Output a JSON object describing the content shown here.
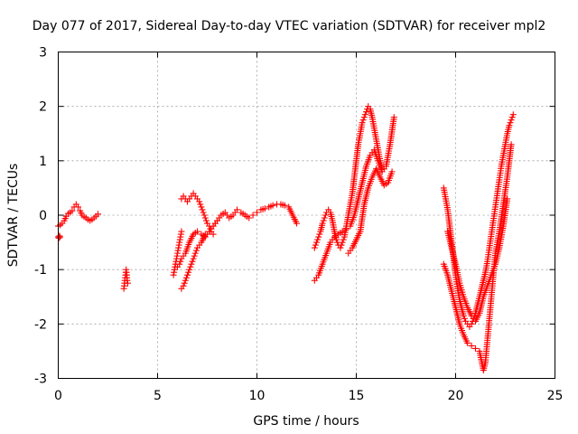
{
  "chart_data": {
    "type": "scatter",
    "title": "Day 077 of 2017, Sidereal Day-to-day VTEC variation (SDTVAR) for receiver mpl2",
    "xlabel": "GPS time / hours",
    "ylabel": "SDTVAR / TECUs",
    "xlim": [
      0,
      25
    ],
    "ylim": [
      -3,
      3
    ],
    "xticks": [
      0,
      5,
      10,
      15,
      20,
      25
    ],
    "yticks": [
      -3,
      -2,
      -1,
      0,
      1,
      2,
      3
    ],
    "xtick_labels": [
      "0",
      "5",
      "10",
      "15",
      "20",
      "25"
    ],
    "ytick_labels": [
      "-3",
      "-2",
      "-1",
      "0",
      "1",
      "2",
      "3"
    ],
    "grid": true,
    "marker": "+",
    "color": "#ff0000",
    "series": [
      {
        "x": [
          0.0,
          0.1,
          0.2,
          0.3,
          0.4,
          0.5,
          0.6,
          0.7,
          0.8,
          0.9,
          1.0,
          1.1,
          1.2,
          1.3,
          1.4,
          1.5,
          1.6,
          1.7,
          1.8,
          1.9,
          2.0
        ],
        "y": [
          -0.2,
          -0.18,
          -0.15,
          -0.1,
          -0.02,
          0.03,
          0.05,
          0.08,
          0.15,
          0.2,
          0.15,
          0.08,
          0.0,
          -0.03,
          -0.05,
          -0.08,
          -0.1,
          -0.08,
          -0.05,
          -0.02,
          0.02
        ]
      },
      {
        "x": [
          0.0,
          0.03,
          0.06,
          0.09
        ],
        "y": [
          -0.4,
          -0.42,
          -0.38,
          -0.4
        ]
      },
      {
        "x": [
          3.3,
          3.32,
          3.35,
          3.37,
          3.4,
          3.42,
          3.45,
          3.47,
          3.5
        ],
        "y": [
          -1.35,
          -1.3,
          -1.2,
          -1.15,
          -1.05,
          -1.0,
          -1.1,
          -1.2,
          -1.25
        ]
      },
      {
        "x": [
          5.8,
          5.85,
          5.9,
          5.95,
          6.0,
          6.05,
          6.1,
          6.15,
          6.2
        ],
        "y": [
          -1.1,
          -1.0,
          -0.9,
          -0.8,
          -0.7,
          -0.6,
          -0.5,
          -0.4,
          -0.3
        ]
      },
      {
        "x": [
          6.2,
          6.3,
          6.4,
          6.5,
          6.6,
          6.7,
          6.8,
          6.9,
          7.0,
          7.1,
          7.2,
          7.3,
          7.4,
          7.5,
          7.6,
          7.7,
          7.8
        ],
        "y": [
          0.3,
          0.35,
          0.3,
          0.25,
          0.3,
          0.35,
          0.4,
          0.35,
          0.3,
          0.25,
          0.15,
          0.05,
          -0.05,
          -0.15,
          -0.2,
          -0.3,
          -0.35
        ]
      },
      {
        "x": [
          6.2,
          6.3,
          6.4,
          6.5,
          6.6,
          6.7,
          6.8,
          6.9,
          7.0,
          7.2,
          7.4,
          7.6,
          7.8,
          8.0,
          8.2,
          8.4,
          8.6,
          8.8,
          9.0,
          9.2,
          9.4,
          9.6,
          9.8,
          10.0,
          10.2,
          10.4,
          10.6,
          10.8,
          11.0,
          11.2,
          11.4,
          11.6,
          11.8,
          12.0
        ],
        "y": [
          -1.35,
          -1.3,
          -1.2,
          -1.1,
          -1.0,
          -0.9,
          -0.8,
          -0.7,
          -0.6,
          -0.5,
          -0.35,
          -0.3,
          -0.2,
          -0.1,
          0.0,
          0.05,
          -0.05,
          0.0,
          0.1,
          0.05,
          0.0,
          -0.05,
          0.0,
          0.05,
          0.1,
          0.12,
          0.15,
          0.18,
          0.2,
          0.2,
          0.18,
          0.15,
          0.0,
          -0.15
        ]
      },
      {
        "x": [
          6.0,
          6.1,
          6.2,
          6.4,
          6.6,
          6.8,
          7.0,
          7.2,
          7.4,
          7.6,
          7.8,
          8.0,
          8.2
        ],
        "y": [
          -0.95,
          -0.9,
          -0.8,
          -0.7,
          -0.5,
          -0.35,
          -0.3,
          -0.35,
          -0.4,
          -0.3,
          -0.2,
          -0.1,
          0.0
        ]
      },
      {
        "x": [
          12.9,
          13.0,
          13.1,
          13.2,
          13.3,
          13.4,
          13.5,
          13.6,
          13.7,
          13.8,
          13.9,
          14.0,
          14.1,
          14.2,
          14.3,
          14.4,
          14.5,
          14.6,
          14.7,
          14.8,
          14.9,
          15.0,
          15.1,
          15.2,
          15.3,
          15.4,
          15.5,
          15.6,
          15.7,
          15.8,
          15.9,
          16.0,
          16.1,
          16.2,
          16.3
        ],
        "y": [
          -0.6,
          -0.5,
          -0.4,
          -0.3,
          -0.15,
          -0.05,
          0.05,
          0.1,
          0.05,
          -0.1,
          -0.3,
          -0.45,
          -0.55,
          -0.6,
          -0.5,
          -0.4,
          -0.2,
          0.0,
          0.2,
          0.4,
          0.7,
          1.0,
          1.3,
          1.5,
          1.7,
          1.8,
          1.9,
          2.0,
          1.95,
          1.8,
          1.6,
          1.4,
          1.2,
          1.0,
          0.85
        ]
      },
      {
        "x": [
          12.9,
          13.1,
          13.3,
          13.5,
          13.7,
          13.9,
          14.1,
          14.3,
          14.5,
          14.7,
          14.9,
          15.1,
          15.3,
          15.5,
          15.7,
          15.9,
          16.1,
          16.3,
          16.5,
          16.7,
          16.9
        ],
        "y": [
          -1.2,
          -1.1,
          -0.9,
          -0.7,
          -0.5,
          -0.4,
          -0.35,
          -0.3,
          -0.25,
          -0.2,
          0.0,
          0.3,
          0.6,
          0.9,
          1.1,
          1.2,
          1.0,
          0.8,
          0.9,
          1.3,
          1.8
        ]
      },
      {
        "x": [
          14.6,
          14.8,
          15.0,
          15.2,
          15.4,
          15.6,
          15.8,
          16.0,
          16.2,
          16.4,
          16.6,
          16.8
        ],
        "y": [
          -0.7,
          -0.6,
          -0.45,
          -0.3,
          0.2,
          0.5,
          0.7,
          0.85,
          0.7,
          0.55,
          0.6,
          0.8
        ]
      },
      {
        "x": [
          19.4,
          19.5,
          19.6,
          19.7,
          19.8,
          19.9,
          20.0,
          20.1,
          20.2,
          20.3,
          20.4,
          20.5,
          20.6,
          20.7,
          20.8,
          20.9,
          21.0,
          21.1,
          21.2,
          21.3,
          21.4,
          21.5,
          21.6,
          21.7,
          21.8,
          21.9,
          22.0,
          22.1,
          22.2,
          22.3,
          22.4,
          22.5,
          22.6,
          22.7,
          22.8,
          22.9
        ],
        "y": [
          0.5,
          0.3,
          0.1,
          -0.2,
          -0.5,
          -0.8,
          -1.1,
          -1.35,
          -1.55,
          -1.7,
          -1.85,
          -1.95,
          -2.0,
          -2.05,
          -2.0,
          -1.9,
          -1.8,
          -1.65,
          -1.5,
          -1.35,
          -1.2,
          -1.05,
          -0.85,
          -0.6,
          -0.35,
          -0.1,
          0.15,
          0.4,
          0.65,
          0.9,
          1.1,
          1.3,
          1.5,
          1.65,
          1.75,
          1.85
        ]
      },
      {
        "x": [
          19.4,
          19.6,
          19.8,
          20.0,
          20.2,
          20.4,
          20.6,
          20.8,
          21.0,
          21.2,
          21.4,
          21.5,
          21.6,
          21.7,
          21.8,
          21.9,
          22.0,
          22.2,
          22.4,
          22.6,
          22.8
        ],
        "y": [
          -0.9,
          -1.1,
          -1.4,
          -1.7,
          -2.0,
          -2.2,
          -2.35,
          -2.4,
          -2.45,
          -2.5,
          -2.85,
          -2.7,
          -2.3,
          -1.9,
          -1.5,
          -1.1,
          -0.7,
          -0.3,
          0.2,
          0.7,
          1.3
        ]
      },
      {
        "x": [
          19.6,
          19.8,
          20.0,
          20.2,
          20.4,
          20.6,
          20.8,
          21.0,
          21.2,
          21.4,
          21.6,
          21.8,
          22.0,
          22.2,
          22.4,
          22.6
        ],
        "y": [
          -0.3,
          -0.6,
          -0.9,
          -1.25,
          -1.5,
          -1.7,
          -1.85,
          -1.95,
          -1.8,
          -1.5,
          -1.3,
          -1.1,
          -0.9,
          -0.6,
          -0.2,
          0.3
        ]
      }
    ]
  }
}
